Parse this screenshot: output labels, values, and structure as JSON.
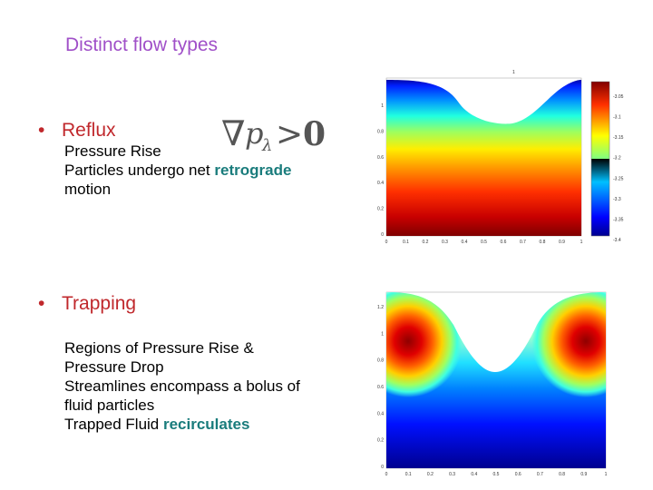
{
  "title": "Distinct flow types",
  "reflux": {
    "heading": "Reflux",
    "line1": "Pressure Rise",
    "line2_pre": "Particles undergo net ",
    "line2_accent": "retrograde",
    "line3": "motion",
    "formula": {
      "nabla": "∇",
      "p": "p",
      "subscript": "λ",
      "relation": ">",
      "rhs": "0"
    }
  },
  "trapping": {
    "heading": "Trapping",
    "line1": "Regions of Pressure Rise &",
    "line2": "Pressure Drop",
    "line3": "Streamlines encompass a bolus of",
    "line4": "fluid particles",
    "line5_pre": "Trapped Fluid ",
    "line5_accent": "recirculates"
  },
  "plot_top": {
    "title_mark": "1",
    "x_ticks": [
      "0",
      "0.1",
      "0.2",
      "0.3",
      "0.4",
      "0.5",
      "0.6",
      "0.7",
      "0.8",
      "0.9",
      "1"
    ],
    "y_ticks": [
      "1",
      "0.8",
      "0.6",
      "0.4",
      "0.2",
      "0"
    ],
    "colorbar_ticks": [
      "-3.05",
      "-3.1",
      "-3.15",
      "-3.2",
      "-3.25",
      "-3.3",
      "-3.35",
      "-3.4"
    ]
  },
  "plot_bottom": {
    "x_ticks": [
      "0",
      "0.1",
      "0.2",
      "0.3",
      "0.4",
      "0.5",
      "0.6",
      "0.7",
      "0.8",
      "0.9",
      "1"
    ],
    "y_ticks": [
      "1.2",
      "1",
      "0.8",
      "0.6",
      "0.4",
      "0.2",
      "0"
    ]
  },
  "colors": {
    "title": "#a050c8",
    "heading": "#c0282c",
    "accent": "#1a7c7c"
  }
}
